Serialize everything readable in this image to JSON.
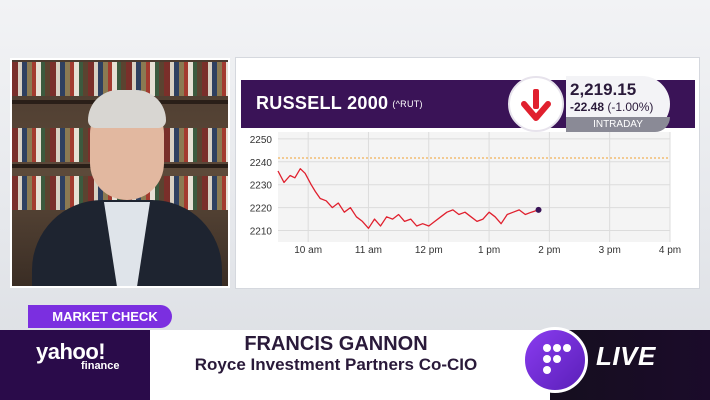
{
  "ticker": {
    "index_name": "RUSSELL 2000",
    "symbol": "(^RUT)",
    "price": "2,219.15",
    "change": "-22.48",
    "change_pct": "(-1.00%)",
    "session": "INTRADAY",
    "direction_icon": "arrow-down-icon",
    "direction_color": "#e0202e"
  },
  "lower_third": {
    "segment": "MARKET CHECK",
    "brand_name": "yahoo!",
    "brand_sub": "finance",
    "guest_name": "FRANCIS GANNON",
    "guest_title": "Royce Investment Partners Co-CIO",
    "live_label": "LIVE",
    "accent": "#7b2fe0",
    "brand_bg": "#2a0b4a"
  },
  "chart_data": {
    "type": "line",
    "y_ticks": [
      "2250",
      "2240",
      "2230",
      "2220",
      "2210"
    ],
    "ylim": [
      2205,
      2253
    ],
    "x_ticks": [
      "10 am",
      "11 am",
      "12 pm",
      "1 pm",
      "2 pm",
      "3 pm",
      "4 pm"
    ],
    "xlim": [
      9.5,
      16.0
    ],
    "previous_close": 2241.63,
    "line_color": "#e0202e",
    "reference_color": "#f0a030",
    "series": [
      {
        "x": [
          9.5,
          9.6,
          9.7,
          9.78,
          9.87,
          9.95,
          10.05,
          10.12,
          10.2,
          10.3,
          10.4,
          10.5,
          10.6,
          10.7,
          10.8,
          10.9,
          11.0,
          11.1,
          11.2,
          11.3,
          11.4,
          11.5,
          11.6,
          11.7,
          11.8,
          11.9,
          12.0,
          12.1,
          12.2,
          12.3,
          12.4,
          12.5,
          12.6,
          12.7,
          12.8,
          12.9,
          13.0,
          13.1,
          13.2,
          13.3,
          13.4,
          13.5,
          13.6,
          13.7,
          13.82
        ],
        "values": [
          2236,
          2231,
          2234,
          2233,
          2237,
          2235,
          2230,
          2227,
          2224,
          2223,
          2220,
          2222,
          2218,
          2220,
          2216,
          2214,
          2211,
          2215,
          2212,
          2216,
          2215,
          2217,
          2214,
          2215,
          2212,
          2213,
          2212,
          2214,
          2216,
          2218,
          2219,
          2217,
          2218,
          2216,
          2214,
          2215,
          2218,
          2216,
          2213,
          2217,
          2218,
          2219,
          2217,
          2218,
          2219
        ]
      }
    ]
  }
}
